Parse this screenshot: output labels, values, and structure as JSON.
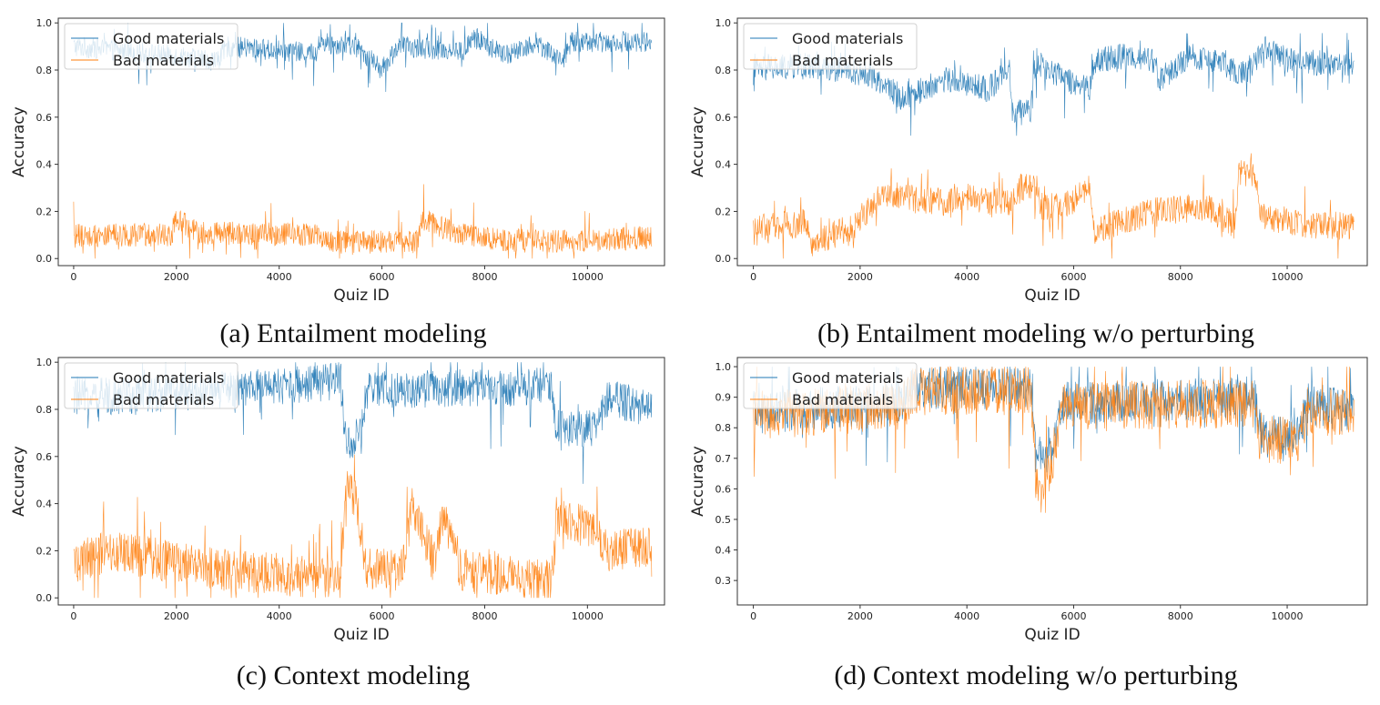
{
  "chart_data": [
    {
      "type": "line",
      "caption": "(a) Entailment modeling",
      "xlabel": "Quiz ID",
      "ylabel": "Accuracy",
      "xlim": [
        -300,
        11500
      ],
      "ylim": [
        -0.03,
        1.02
      ],
      "xticks": [
        0,
        2000,
        4000,
        6000,
        8000,
        10000
      ],
      "yticks": [
        0.0,
        0.2,
        0.4,
        0.6,
        0.8,
        1.0
      ],
      "ytick_labels": [
        "0.0",
        "0.2",
        "0.4",
        "0.6",
        "0.8",
        "1.0"
      ],
      "legend_position": "top-left",
      "series": [
        {
          "name": "Good materials",
          "color": "#1f77b4",
          "spread": 0.045,
          "clip": [
            0,
            1
          ],
          "segments": [
            [
              0,
              0.9
            ],
            [
              1000,
              0.88
            ],
            [
              2000,
              0.86
            ],
            [
              2800,
              0.84
            ],
            [
              3000,
              0.9
            ],
            [
              4700,
              0.87
            ],
            [
              4800,
              0.92
            ],
            [
              5500,
              0.9
            ],
            [
              6000,
              0.8
            ],
            [
              6300,
              0.9
            ],
            [
              7600,
              0.88
            ],
            [
              7800,
              0.94
            ],
            [
              8400,
              0.86
            ],
            [
              9000,
              0.92
            ],
            [
              9500,
              0.84
            ],
            [
              9700,
              0.92
            ],
            [
              11250,
              0.92
            ]
          ]
        },
        {
          "name": "Bad materials",
          "color": "#ff7f0e",
          "spread": 0.05,
          "clip": [
            0,
            1
          ],
          "segments": [
            [
              0,
              0.1
            ],
            [
              1900,
              0.1
            ],
            [
              2000,
              0.17
            ],
            [
              2400,
              0.11
            ],
            [
              4800,
              0.1
            ],
            [
              4850,
              0.07
            ],
            [
              6700,
              0.07
            ],
            [
              6800,
              0.17
            ],
            [
              7400,
              0.11
            ],
            [
              8200,
              0.08
            ],
            [
              9500,
              0.07
            ],
            [
              11250,
              0.09
            ]
          ]
        }
      ]
    },
    {
      "type": "line",
      "caption": "(b) Entailment modeling w/o perturbing",
      "xlabel": "Quiz ID",
      "ylabel": "Accuracy",
      "xlim": [
        -300,
        11500
      ],
      "ylim": [
        -0.03,
        1.02
      ],
      "xticks": [
        0,
        2000,
        4000,
        6000,
        8000,
        10000
      ],
      "yticks": [
        0.0,
        0.2,
        0.4,
        0.6,
        0.8,
        1.0
      ],
      "ytick_labels": [
        "0.0",
        "0.2",
        "0.4",
        "0.6",
        "0.8",
        "1.0"
      ],
      "legend_position": "top-left",
      "series": [
        {
          "name": "Good materials",
          "color": "#1f77b4",
          "spread": 0.055,
          "clip": [
            0,
            1
          ],
          "segments": [
            [
              0,
              0.8
            ],
            [
              1000,
              0.82
            ],
            [
              1700,
              0.8
            ],
            [
              2200,
              0.78
            ],
            [
              2800,
              0.68
            ],
            [
              3600,
              0.76
            ],
            [
              4400,
              0.72
            ],
            [
              4800,
              0.8
            ],
            [
              4850,
              0.62
            ],
            [
              5200,
              0.62
            ],
            [
              5250,
              0.82
            ],
            [
              6300,
              0.72
            ],
            [
              6400,
              0.84
            ],
            [
              7000,
              0.86
            ],
            [
              7500,
              0.84
            ],
            [
              7600,
              0.76
            ],
            [
              8200,
              0.86
            ],
            [
              8800,
              0.82
            ],
            [
              9200,
              0.78
            ],
            [
              9600,
              0.9
            ],
            [
              10000,
              0.84
            ],
            [
              11250,
              0.82
            ]
          ]
        },
        {
          "name": "Bad materials",
          "color": "#ff7f0e",
          "spread": 0.06,
          "clip": [
            0,
            1
          ],
          "segments": [
            [
              0,
              0.13
            ],
            [
              1000,
              0.15
            ],
            [
              1100,
              0.06
            ],
            [
              1900,
              0.14
            ],
            [
              2200,
              0.22
            ],
            [
              2400,
              0.28
            ],
            [
              3500,
              0.24
            ],
            [
              4000,
              0.26
            ],
            [
              4500,
              0.24
            ],
            [
              4900,
              0.24
            ],
            [
              5000,
              0.3
            ],
            [
              5300,
              0.3
            ],
            [
              5400,
              0.22
            ],
            [
              5800,
              0.22
            ],
            [
              6300,
              0.3
            ],
            [
              6400,
              0.12
            ],
            [
              7500,
              0.2
            ],
            [
              8500,
              0.22
            ],
            [
              9000,
              0.14
            ],
            [
              9100,
              0.36
            ],
            [
              9400,
              0.34
            ],
            [
              9500,
              0.18
            ],
            [
              10500,
              0.14
            ],
            [
              11250,
              0.14
            ]
          ]
        }
      ]
    },
    {
      "type": "line",
      "caption": "(c) Context modeling",
      "xlabel": "Quiz ID",
      "ylabel": "Accuracy",
      "xlim": [
        -300,
        11500
      ],
      "ylim": [
        -0.03,
        1.02
      ],
      "xticks": [
        0,
        2000,
        4000,
        6000,
        8000,
        10000
      ],
      "yticks": [
        0.0,
        0.2,
        0.4,
        0.6,
        0.8,
        1.0
      ],
      "ytick_labels": [
        "0.0",
        "0.2",
        "0.4",
        "0.6",
        "0.8",
        "1.0"
      ],
      "legend_position": "top-left",
      "series": [
        {
          "name": "Good materials",
          "color": "#1f77b4",
          "spread": 0.08,
          "clip": [
            0,
            1
          ],
          "segments": [
            [
              0,
              0.85
            ],
            [
              2800,
              0.88
            ],
            [
              5200,
              0.92
            ],
            [
              5300,
              0.65
            ],
            [
              5600,
              0.7
            ],
            [
              5700,
              0.88
            ],
            [
              9300,
              0.9
            ],
            [
              9400,
              0.72
            ],
            [
              10200,
              0.72
            ],
            [
              10400,
              0.85
            ],
            [
              11250,
              0.8
            ]
          ]
        },
        {
          "name": "Bad materials",
          "color": "#ff7f0e",
          "spread": 0.09,
          "clip": [
            0,
            1
          ],
          "segments": [
            [
              0,
              0.15
            ],
            [
              700,
              0.2
            ],
            [
              2800,
              0.12
            ],
            [
              5200,
              0.08
            ],
            [
              5300,
              0.5
            ],
            [
              5500,
              0.4
            ],
            [
              5700,
              0.12
            ],
            [
              6400,
              0.12
            ],
            [
              6600,
              0.4
            ],
            [
              7000,
              0.15
            ],
            [
              7200,
              0.35
            ],
            [
              7500,
              0.12
            ],
            [
              9300,
              0.07
            ],
            [
              9400,
              0.35
            ],
            [
              10000,
              0.3
            ],
            [
              10400,
              0.2
            ],
            [
              11250,
              0.22
            ]
          ]
        }
      ]
    },
    {
      "type": "line",
      "caption": "(d) Context modeling w/o perturbing",
      "xlabel": "Quiz ID",
      "ylabel": "Accuracy",
      "xlim": [
        -300,
        11500
      ],
      "ylim": [
        0.22,
        1.03
      ],
      "xticks": [
        0,
        2000,
        4000,
        6000,
        8000,
        10000
      ],
      "yticks": [
        0.3,
        0.4,
        0.5,
        0.6,
        0.7,
        0.8,
        0.9,
        1.0
      ],
      "ytick_labels": [
        "0.3",
        "0.4",
        "0.5",
        "0.6",
        "0.7",
        "0.8",
        "0.9",
        "1.0"
      ],
      "legend_position": "top-left",
      "series": [
        {
          "name": "Good materials",
          "color": "#1f77b4",
          "spread": 0.07,
          "clip": [
            0.25,
            1
          ],
          "segments": [
            [
              0,
              0.85
            ],
            [
              2800,
              0.88
            ],
            [
              3000,
              0.93
            ],
            [
              5200,
              0.93
            ],
            [
              5300,
              0.7
            ],
            [
              5600,
              0.75
            ],
            [
              5800,
              0.88
            ],
            [
              9400,
              0.9
            ],
            [
              9500,
              0.78
            ],
            [
              10200,
              0.78
            ],
            [
              10400,
              0.88
            ],
            [
              11250,
              0.85
            ]
          ]
        },
        {
          "name": "Bad materials",
          "color": "#ff7f0e",
          "spread": 0.08,
          "clip": [
            0.25,
            1
          ],
          "segments": [
            [
              0,
              0.84
            ],
            [
              2800,
              0.87
            ],
            [
              3000,
              0.92
            ],
            [
              5200,
              0.92
            ],
            [
              5300,
              0.6
            ],
            [
              5600,
              0.7
            ],
            [
              5800,
              0.87
            ],
            [
              9400,
              0.88
            ],
            [
              9500,
              0.76
            ],
            [
              10200,
              0.76
            ],
            [
              10400,
              0.86
            ],
            [
              11250,
              0.84
            ]
          ]
        }
      ]
    }
  ]
}
